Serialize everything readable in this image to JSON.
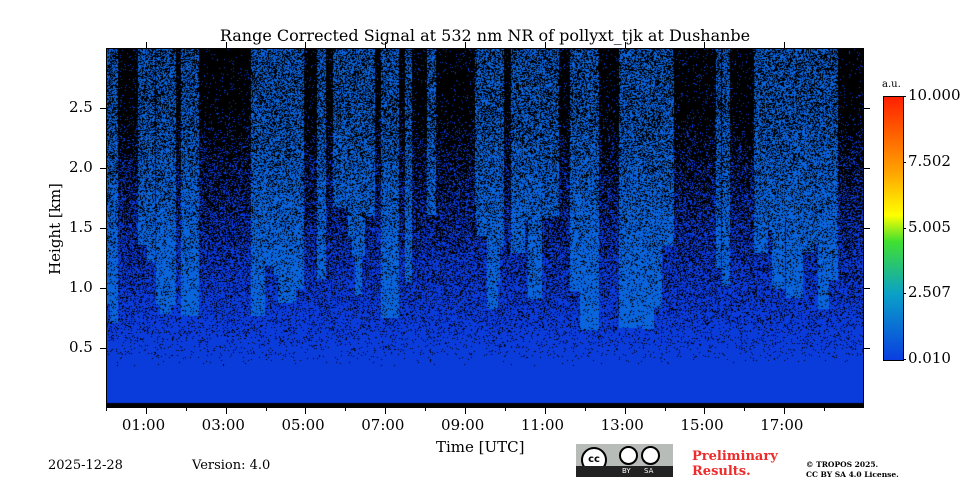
{
  "chart_data": {
    "type": "heatmap",
    "title": "Range Corrected Signal at 532 nm NR of pollyxt_tjk at Dushanbe",
    "xlabel": "Time [UTC]",
    "ylabel": "Height [km]",
    "xlim_hours": [
      0,
      19
    ],
    "ylim": [
      0,
      3.0
    ],
    "xticks": [
      {
        "v": 1,
        "label": "01:00"
      },
      {
        "v": 3,
        "label": "03:00"
      },
      {
        "v": 5,
        "label": "05:00"
      },
      {
        "v": 7,
        "label": "07:00"
      },
      {
        "v": 9,
        "label": "09:00"
      },
      {
        "v": 11,
        "label": "11:00"
      },
      {
        "v": 13,
        "label": "13:00"
      },
      {
        "v": 15,
        "label": "15:00"
      },
      {
        "v": 17,
        "label": "17:00"
      }
    ],
    "yticks": [
      {
        "v": 0.5,
        "label": "0.5"
      },
      {
        "v": 1.0,
        "label": "1.0"
      },
      {
        "v": 1.5,
        "label": "1.5"
      },
      {
        "v": 2.0,
        "label": "2.0"
      },
      {
        "v": 2.5,
        "label": "2.5"
      }
    ],
    "colorbar": {
      "unit": "a.u.",
      "range": [
        0.01,
        10.0
      ],
      "ticks": [
        {
          "v": 0.01,
          "label": "0.010"
        },
        {
          "v": 2.507,
          "label": "2.507"
        },
        {
          "v": 5.005,
          "label": "5.005"
        },
        {
          "v": 7.502,
          "label": "7.502"
        },
        {
          "v": 10.0,
          "label": "10.000"
        }
      ]
    }
  },
  "footer": {
    "date": "2025-12-28",
    "version": "Version: 4.0",
    "prelim": [
      "Preliminary",
      "Results."
    ],
    "copyright": "© TROPOS 2025.",
    "license": "CC BY SA 4.0 License.",
    "cc_by": "BY",
    "cc_sa": "SA",
    "cc": "cc"
  }
}
